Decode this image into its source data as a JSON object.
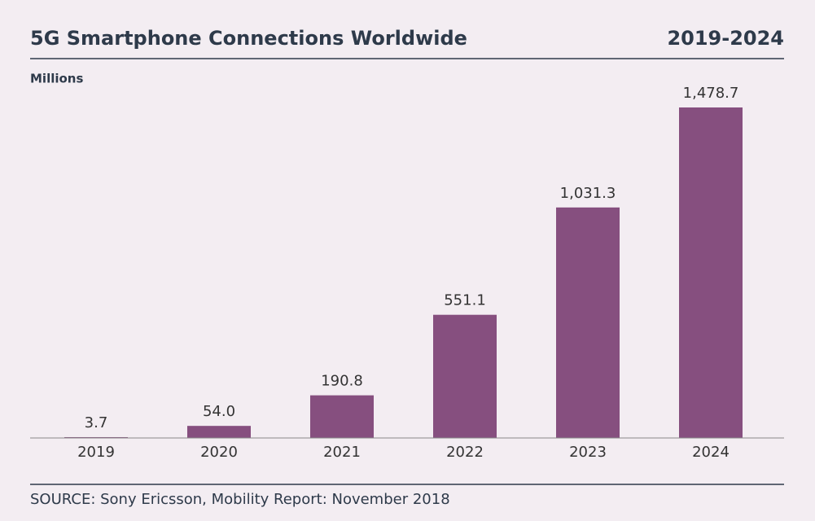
{
  "chart_data": {
    "type": "bar",
    "title": "5G Smartphone Connections Worldwide",
    "subtitle": "2019-2024",
    "y_label": "Millions",
    "categories": [
      "2019",
      "2020",
      "2021",
      "2022",
      "2023",
      "2024"
    ],
    "values": [
      3.7,
      54.0,
      190.8,
      551.1,
      1031.3,
      1478.7
    ],
    "value_labels": [
      "3.7",
      "54.0",
      "190.8",
      "551.1",
      "1,031.3",
      "1,478.7"
    ],
    "color": "#864f7f",
    "source": "SOURCE: Sony Ericsson, Mobility Report: November 2018"
  }
}
